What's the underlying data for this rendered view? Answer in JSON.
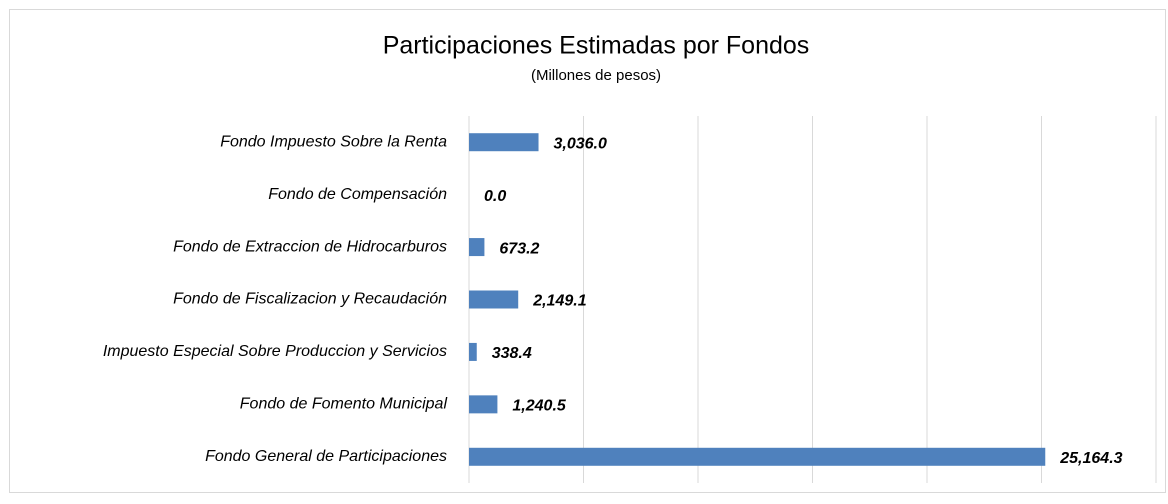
{
  "chart_data": {
    "type": "barh",
    "title": "Participaciones Estimadas por Fondos",
    "subtitle": "(Millones de pesos)",
    "categories": [
      "Fondo Impuesto Sobre la Renta",
      "Fondo de Compensación",
      "Fondo de Extraccion de Hidrocarburos",
      "Fondo de Fiscalizacion y Recaudación",
      "Impuesto Especial Sobre Produccion y Servicios",
      "Fondo de Fomento Municipal",
      "Fondo General de Participaciones"
    ],
    "values": [
      3036.0,
      0.0,
      673.2,
      2149.1,
      338.4,
      1240.5,
      25164.3
    ],
    "value_labels": [
      "3,036.0",
      "0.0",
      "673.2",
      "2,149.1",
      "338.4",
      "1,240.5",
      "25,164.3"
    ],
    "color": "#4f81bd",
    "xlim": [
      0,
      30000
    ],
    "xticks": [
      0,
      5000,
      10000,
      15000,
      20000,
      25000,
      30000
    ],
    "grid": true
  }
}
